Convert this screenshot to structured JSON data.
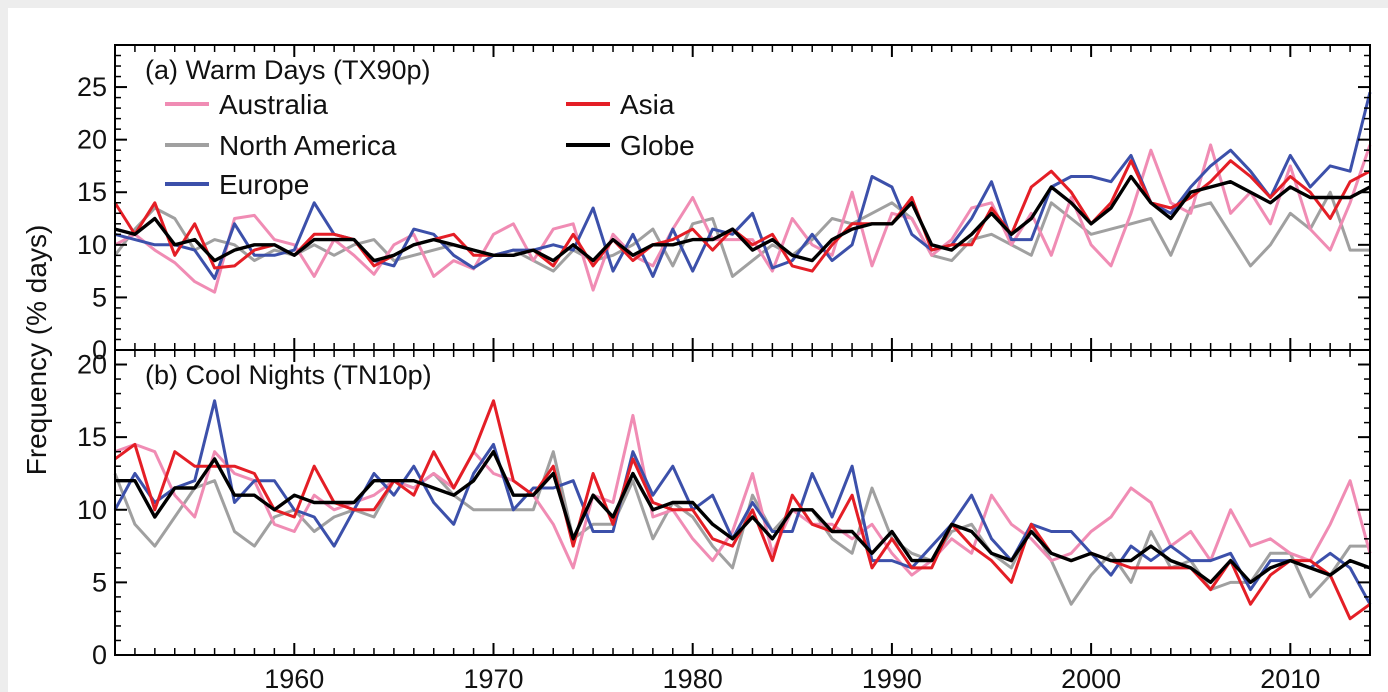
{
  "chart_data": {
    "type": "line",
    "y_axis_title": "Frequency  (% days)",
    "x_ticks": [
      1960,
      1970,
      1980,
      1990,
      2000,
      2010
    ],
    "xlim": [
      1951,
      2014
    ],
    "grid": false,
    "legend_placement": "top-left (panel a)",
    "colors": {
      "Australia": "#f08cb4",
      "North America": "#a0a0a0",
      "Europe": "#3c50aa",
      "Asia": "#e41e26",
      "Globe": "#000000"
    },
    "panels": [
      {
        "title": "(a) Warm Days (TX90p)",
        "ylim": [
          0,
          29
        ],
        "y_ticks": [
          0,
          5,
          10,
          15,
          20,
          25
        ],
        "x": [
          1951,
          1952,
          1953,
          1954,
          1955,
          1956,
          1957,
          1958,
          1959,
          1960,
          1961,
          1962,
          1963,
          1964,
          1965,
          1966,
          1967,
          1968,
          1969,
          1970,
          1971,
          1972,
          1973,
          1974,
          1975,
          1976,
          1977,
          1978,
          1979,
          1980,
          1981,
          1982,
          1983,
          1984,
          1985,
          1986,
          1987,
          1988,
          1989,
          1990,
          1991,
          1992,
          1993,
          1994,
          1995,
          1996,
          1997,
          1998,
          1999,
          2000,
          2001,
          2002,
          2003,
          2004,
          2005,
          2006,
          2007,
          2008,
          2009,
          2010,
          2011,
          2012,
          2013,
          2014
        ],
        "series": [
          {
            "name": "Australia",
            "values": [
              10,
              11,
              9.5,
              8.3,
              6.5,
              5.5,
              12.5,
              12.8,
              10.5,
              10,
              7,
              10.5,
              9,
              7.2,
              10,
              11,
              7,
              8.5,
              7.7,
              11,
              12,
              8.5,
              11.5,
              12,
              5.7,
              11,
              9,
              8,
              11.5,
              14.5,
              10.5,
              10.5,
              10.5,
              7.5,
              12.5,
              10,
              9,
              15,
              8,
              13,
              12.5,
              9,
              10.5,
              13.5,
              14,
              10,
              13,
              9,
              14.5,
              10,
              8,
              13,
              19,
              14,
              13,
              19.5,
              13,
              15,
              12,
              17.5,
              11.5,
              9.5,
              14,
              19.5
            ]
          },
          {
            "name": "North America",
            "values": [
              9,
              11.5,
              13.5,
              12.5,
              9.5,
              10.5,
              10,
              8.5,
              9.5,
              9,
              10,
              9,
              10,
              10.5,
              8.5,
              9,
              9.5,
              10,
              9.5,
              9,
              9.5,
              8.5,
              7.5,
              9.5,
              8.5,
              9,
              10,
              11.5,
              8,
              12,
              12.5,
              7,
              8.5,
              10,
              9,
              10.5,
              12.5,
              12,
              13,
              14,
              12.5,
              9,
              8.5,
              10.5,
              11,
              10,
              9,
              14,
              12.5,
              11,
              11.5,
              12,
              12.5,
              9,
              13.5,
              14,
              11,
              8,
              10,
              13,
              11.5,
              15,
              9.5,
              9.5
            ]
          },
          {
            "name": "Europe",
            "values": [
              11,
              10.5,
              10,
              10,
              9.5,
              6.8,
              12,
              9,
              9,
              9.5,
              14,
              11,
              10.5,
              8.5,
              8,
              11.5,
              11,
              9,
              7.8,
              9,
              9.5,
              9.5,
              10,
              9.5,
              13.5,
              7.5,
              11,
              7,
              11.5,
              7.5,
              11.5,
              11,
              13,
              7.8,
              8.5,
              11,
              8.5,
              10,
              16.5,
              15.5,
              11,
              9.5,
              10,
              12.5,
              16,
              10.5,
              10.5,
              15.5,
              16.5,
              16.5,
              16,
              18.5,
              14,
              13,
              15.5,
              17.5,
              19,
              17,
              14.5,
              18.5,
              15.5,
              17.5,
              17,
              24.5
            ]
          },
          {
            "name": "Asia",
            "values": [
              14,
              11,
              14,
              9,
              12,
              7.8,
              8,
              9.5,
              10,
              9,
              11,
              11,
              10.5,
              8,
              9,
              10,
              10.5,
              11,
              9,
              9,
              9,
              9.5,
              8,
              11,
              8,
              10.5,
              8.5,
              10,
              10.5,
              11.5,
              9.5,
              11.5,
              10,
              11,
              8,
              7.5,
              10,
              12,
              12,
              12,
              14.5,
              9.5,
              10,
              10,
              13.5,
              11,
              15.5,
              17,
              15,
              12,
              14,
              18,
              14,
              13.5,
              14.5,
              16,
              18,
              16.5,
              14.5,
              16.5,
              15,
              12.5,
              16,
              17
            ]
          },
          {
            "name": "Globe",
            "values": [
              11.5,
              11,
              12.5,
              10,
              10.5,
              8.5,
              9.5,
              10,
              10,
              9,
              10.5,
              10.5,
              10.5,
              8.5,
              9,
              10,
              10.5,
              10,
              9.5,
              9,
              9,
              9.5,
              8.5,
              10,
              8.5,
              10.5,
              9,
              10,
              10,
              10.5,
              10.5,
              11.5,
              9.5,
              10.5,
              9,
              8.5,
              10.5,
              11.5,
              12,
              12,
              14,
              10,
              9.5,
              11,
              13,
              11,
              12.5,
              15.5,
              14,
              12,
              13.5,
              16.5,
              14,
              12.5,
              15,
              15.5,
              16,
              15,
              14,
              15.5,
              14.5,
              14.5,
              14.5,
              15.5
            ]
          }
        ]
      },
      {
        "title": "(b) Cool Nights (TN10p)",
        "ylim": [
          0,
          21
        ],
        "y_ticks": [
          0,
          5,
          10,
          15,
          20
        ],
        "x": [
          1951,
          1952,
          1953,
          1954,
          1955,
          1956,
          1957,
          1958,
          1959,
          1960,
          1961,
          1962,
          1963,
          1964,
          1965,
          1966,
          1967,
          1968,
          1969,
          1970,
          1971,
          1972,
          1973,
          1974,
          1975,
          1976,
          1977,
          1978,
          1979,
          1980,
          1981,
          1982,
          1983,
          1984,
          1985,
          1986,
          1987,
          1988,
          1989,
          1990,
          1991,
          1992,
          1993,
          1994,
          1995,
          1996,
          1997,
          1998,
          1999,
          2000,
          2001,
          2002,
          2003,
          2004,
          2005,
          2006,
          2007,
          2008,
          2009,
          2010,
          2011,
          2012,
          2013,
          2014
        ],
        "series": [
          {
            "name": "Australia",
            "values": [
              14,
              14.5,
              14,
              11,
              9.5,
              14,
              12.5,
              12,
              9,
              8.5,
              11,
              10,
              10.5,
              11,
              12,
              11.5,
              12.5,
              11.5,
              14,
              12.5,
              12,
              11,
              9,
              6,
              11,
              10.5,
              16.5,
              9.5,
              10,
              8,
              6.5,
              8.5,
              12.5,
              7,
              10,
              9,
              9,
              8,
              9,
              7,
              5.5,
              6.5,
              8,
              7,
              11,
              9,
              8,
              6.5,
              7,
              8.5,
              9.5,
              11.5,
              10.5,
              7.5,
              8.5,
              6.5,
              10,
              7.5,
              8,
              7,
              6.5,
              9,
              12,
              7
            ]
          },
          {
            "name": "North America",
            "values": [
              12.5,
              9,
              7.5,
              9.5,
              11.5,
              12,
              8.5,
              7.5,
              9.5,
              10,
              8.5,
              9.5,
              10,
              9.5,
              12,
              11.5,
              12.5,
              11,
              10,
              10,
              10,
              10,
              14,
              8,
              9,
              9,
              12,
              8,
              10.5,
              9.5,
              7.5,
              6,
              11,
              8.5,
              10,
              10,
              8,
              7,
              11.5,
              8,
              7,
              6.5,
              8.5,
              9,
              7,
              6,
              9,
              6.5,
              3.5,
              5.5,
              7,
              5,
              8.5,
              6,
              6.5,
              4.5,
              5,
              5,
              7,
              7,
              4,
              5.5,
              7.5,
              7.5
            ]
          },
          {
            "name": "Europe",
            "values": [
              10,
              12.5,
              10.5,
              11.5,
              12,
              17.5,
              10.5,
              12,
              12,
              10,
              9.5,
              7.5,
              10,
              12.5,
              11,
              13,
              10.5,
              9,
              12.5,
              14.5,
              10,
              11.5,
              11.5,
              12,
              8.5,
              8.5,
              14,
              11,
              13,
              10,
              11,
              8,
              10.5,
              8.5,
              8.5,
              12.5,
              9.5,
              13,
              6.5,
              6.5,
              6,
              7.5,
              9,
              11,
              8,
              6.5,
              9,
              8.5,
              8.5,
              7,
              5.5,
              7.5,
              6.5,
              7.5,
              6.5,
              6.5,
              7,
              4.5,
              6.5,
              6.5,
              6,
              7,
              6,
              3.5
            ]
          },
          {
            "name": "Asia",
            "values": [
              13.5,
              14.5,
              10,
              14,
              13,
              13,
              13,
              12.5,
              10,
              9.5,
              13,
              10.5,
              10,
              10,
              12,
              11,
              14,
              11.5,
              14,
              17.5,
              12,
              11,
              13,
              7.5,
              12.5,
              9,
              13.5,
              10.5,
              10,
              10,
              8,
              7.5,
              10,
              6.5,
              11,
              9,
              8.5,
              11,
              6,
              8,
              6,
              6,
              9,
              7.5,
              6.5,
              5,
              9,
              7,
              6.5,
              7,
              6.5,
              6,
              6,
              6,
              6,
              4.5,
              6.5,
              3.5,
              5.5,
              6.5,
              6.5,
              5.5,
              2.5,
              3.5
            ]
          },
          {
            "name": "Globe",
            "values": [
              12,
              12,
              9.5,
              11.5,
              11.5,
              13.5,
              11,
              11,
              10,
              11,
              10.5,
              10.5,
              10.5,
              12,
              12,
              12,
              11.5,
              11,
              12,
              14,
              11,
              11,
              12.5,
              8,
              11,
              9.5,
              12.5,
              10,
              10.5,
              10.5,
              9,
              8,
              9.5,
              8,
              10,
              10,
              8.5,
              8.5,
              7,
              8.5,
              6.5,
              6.5,
              9,
              8.5,
              7,
              6.5,
              8.5,
              7,
              6.5,
              7,
              6.5,
              6.5,
              7.5,
              6.5,
              6,
              5,
              6.5,
              5,
              6,
              6.5,
              6,
              5.5,
              6.5,
              6
            ]
          }
        ]
      }
    ]
  }
}
